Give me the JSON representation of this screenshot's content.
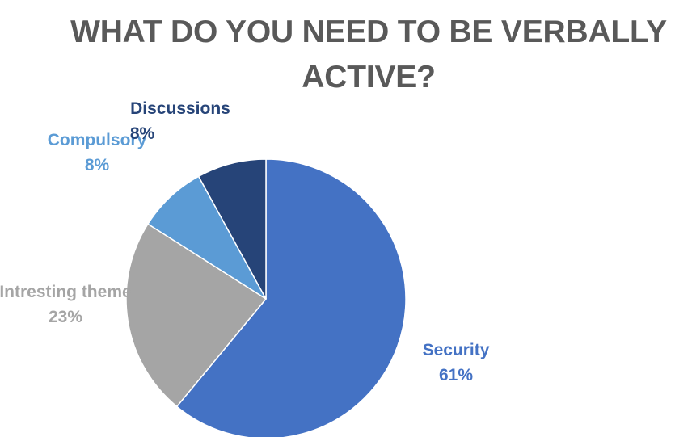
{
  "chart_data": {
    "type": "pie",
    "title": "WHAT DO YOU NEED TO BE VERBALLY ACTIVE?",
    "slices": [
      {
        "label": "Security",
        "value": 61,
        "value_label": "61%",
        "color": "#4472C4"
      },
      {
        "label": "Intresting theme",
        "value": 23,
        "value_label": "23%",
        "color": "#A5A5A5"
      },
      {
        "label": "Compulsory",
        "value": 8,
        "value_label": "8%",
        "color": "#5B9BD5"
      },
      {
        "label": "Discussions",
        "value": 8,
        "value_label": "8%",
        "color": "#264478"
      }
    ],
    "start_angle": "12 o'clock",
    "direction": "clockwise",
    "legend": "none",
    "data_labels": "outside, category name and percentage"
  }
}
